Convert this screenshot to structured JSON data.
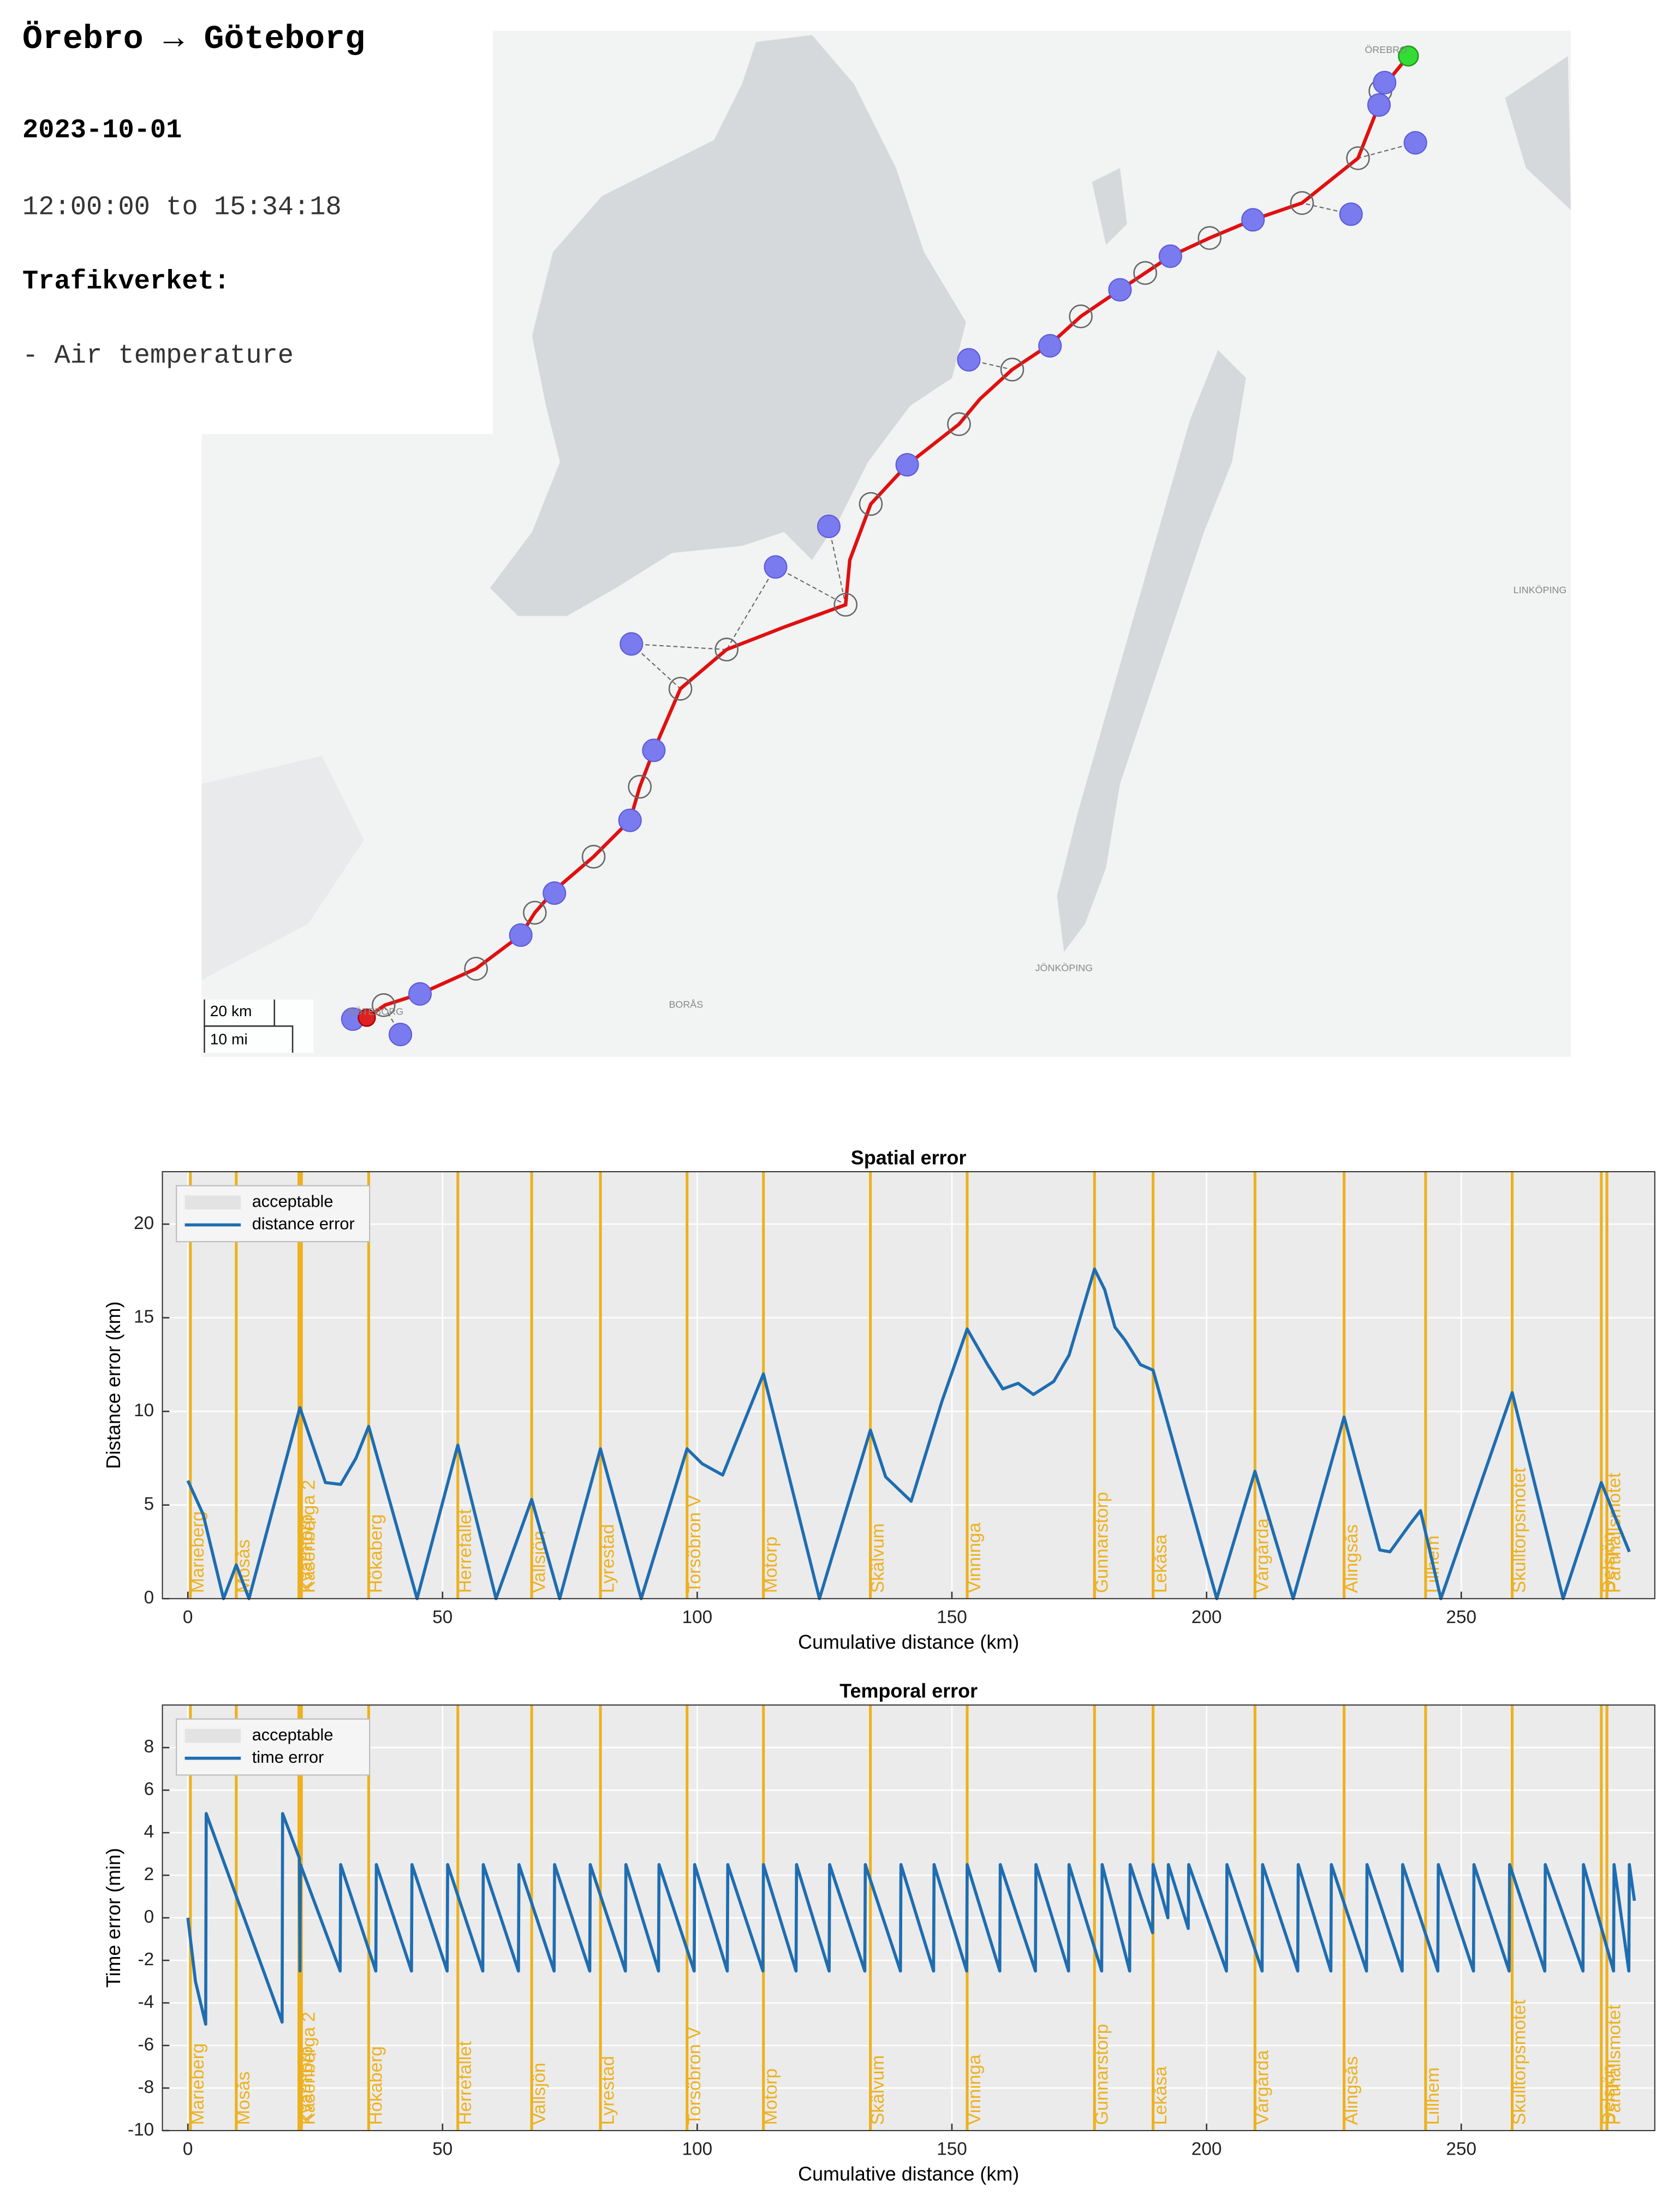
{
  "header": {
    "title": "Örebro → Göteborg",
    "date": "2023-10-01",
    "time_range": "12:00:00 to 15:34:18",
    "source": "Trafikverket:",
    "measurement": "- Air temperature"
  },
  "map": {
    "places": [
      "ÖREBRO",
      "BORÅS",
      "JÖNKÖPING",
      "LINKÖPING",
      "GÖTEBORG"
    ],
    "scale": [
      "20 km",
      "10 mi"
    ]
  },
  "chart_data": [
    {
      "type": "line",
      "title": "Spatial error",
      "x_label": "Cumulative distance (km)",
      "y_label": "Distance error (km)",
      "xlim": [
        -5,
        288
      ],
      "xticks": [
        0,
        50,
        100,
        150,
        200,
        250
      ],
      "ylim": [
        0,
        22.8
      ],
      "yticks": [
        0,
        5,
        10,
        15,
        20
      ],
      "grid": true,
      "bands": [
        {
          "name": "acceptable",
          "color": "#e3e3e3"
        }
      ],
      "markers": {
        "color": "#edb120",
        "names": [
          "Marieberg",
          "Mosås",
          "Kvarntorp",
          "Kåsenberga 2",
          "Hökaberg",
          "Herrefallet",
          "Vallsjön",
          "Lyrestad",
          "Torsöbron V",
          "Motorp",
          "Skälvum",
          "Vinninga",
          "Gunnarstorp",
          "Lekåsa",
          "Vårgårda",
          "Alingsås",
          "Lillhem",
          "Skulltorpsmotet",
          "Delsjön",
          "Partihallsmotet"
        ],
        "x": [
          0.5,
          9.5,
          21.8,
          22.3,
          35.5,
          53,
          67.5,
          81,
          98,
          113,
          134,
          153,
          178,
          189.5,
          209.5,
          227,
          243,
          260,
          277.5,
          278.6
        ]
      },
      "x": [
        0,
        3,
        7,
        9.5,
        12,
        22,
        27,
        30,
        33,
        35.5,
        45,
        53,
        60.5,
        67.5,
        73,
        81,
        89,
        98,
        101,
        105,
        113,
        124,
        134,
        137,
        142,
        148,
        153,
        157,
        160,
        163,
        166,
        170,
        173,
        178,
        180,
        182,
        184,
        187,
        189.5,
        202,
        209.5,
        217,
        227,
        234,
        236,
        240,
        242,
        246,
        260,
        270,
        277.5,
        280,
        283
      ],
      "series": [
        {
          "name": "distance error",
          "color": "#1f6db0",
          "values": [
            6.3,
            4.5,
            0,
            1.8,
            0,
            10.2,
            6.2,
            6.1,
            7.5,
            9.2,
            0,
            8.2,
            0,
            5.3,
            0,
            8,
            0,
            8,
            7.2,
            6.6,
            12,
            0,
            9,
            6.5,
            5.2,
            10.5,
            14.4,
            12.5,
            11.2,
            11.5,
            10.9,
            11.6,
            13,
            17.6,
            16.5,
            14.5,
            13.8,
            12.5,
            12.2,
            0,
            6.8,
            0,
            9.7,
            2.6,
            2.5,
            4,
            4.7,
            0,
            11,
            0,
            6.2,
            4.5,
            2.5
          ]
        }
      ]
    },
    {
      "type": "line",
      "title": "Temporal error",
      "x_label": "Cumulative distance (km)",
      "y_label": "Time error (min)",
      "xlim": [
        -5,
        288
      ],
      "xticks": [
        0,
        50,
        100,
        150,
        200,
        250
      ],
      "ylim": [
        -10,
        10
      ],
      "yticks": [
        -10,
        -8,
        -6,
        -4,
        -2,
        0,
        2,
        4,
        6,
        8
      ],
      "grid": true,
      "bands": [
        {
          "name": "acceptable",
          "color": "#e3e3e3"
        }
      ],
      "markers": {
        "color": "#edb120",
        "names": [
          "Marieberg",
          "Mosås",
          "Kvarntorp",
          "Kåsenberga 2",
          "Hökaberg",
          "Herrefallet",
          "Vallsjön",
          "Lyrestad",
          "Torsöbron V",
          "Motorp",
          "Skälvum",
          "Vinninga",
          "Gunnarstorp",
          "Lekåsa",
          "Vårgårda",
          "Alingsås",
          "Lillhem",
          "Skulltorpsmotet",
          "Delsjön",
          "Partihallsmotet"
        ],
        "x": [
          0.5,
          9.5,
          21.8,
          22.3,
          35.5,
          53,
          67.5,
          81,
          98,
          113,
          134,
          153,
          178,
          189.5,
          209.5,
          227,
          243,
          260,
          277.5,
          278.6
        ]
      },
      "x": [
        0,
        1.5,
        3.5,
        3.6,
        18.5,
        18.6,
        21.9,
        22,
        22.1,
        29.9,
        30,
        36.9,
        37,
        43.9,
        44,
        50.9,
        51,
        57.9,
        58,
        64.9,
        65,
        71.9,
        72,
        78.9,
        79,
        85.9,
        86,
        92.4,
        92.5,
        99.4,
        99.5,
        105.9,
        106,
        112.9,
        113,
        119.4,
        119.5,
        125.9,
        126,
        132.9,
        133,
        139.9,
        140,
        146.4,
        146.5,
        152.9,
        153,
        159.4,
        159.5,
        166.4,
        166.5,
        172.9,
        173,
        179.4,
        179.5,
        184.9,
        185,
        189.4,
        189.5,
        192.4,
        192.5,
        196.4,
        196.5,
        203.9,
        204,
        210.9,
        211,
        217.9,
        218,
        224.4,
        224.5,
        231.4,
        231.5,
        238.4,
        238.5,
        245.4,
        245.5,
        252.4,
        252.5,
        259.4,
        259.5,
        266.4,
        266.5,
        273.9,
        274,
        279.9,
        280,
        282.9,
        283,
        284
      ],
      "series": [
        {
          "name": "time error",
          "color": "#1f6db0",
          "values": [
            0,
            -3,
            -5,
            4.9,
            -4.9,
            4.9,
            2.8,
            -2.5,
            2.5,
            -2.5,
            2.5,
            -2.5,
            2.5,
            -2.5,
            2.5,
            -2.5,
            2.5,
            -2.5,
            2.5,
            -2.5,
            2.5,
            -2.5,
            2.5,
            -2.5,
            2.5,
            -2.5,
            2.5,
            -2.5,
            2.5,
            -2.5,
            2.5,
            -2.5,
            2.5,
            -2.5,
            2.5,
            -2.5,
            2.5,
            -2.5,
            2.5,
            -2.5,
            2.5,
            -2.5,
            2.5,
            -2.5,
            2.5,
            -2.5,
            2.5,
            -2.5,
            2.5,
            -2.5,
            2.5,
            -2.5,
            2.5,
            -2.5,
            2.5,
            -2.5,
            2.5,
            -0.7,
            2.5,
            0,
            2.5,
            -0.5,
            2.5,
            -2.5,
            2.5,
            -2.5,
            2.5,
            -2.5,
            2.5,
            -2.5,
            2.5,
            -2.5,
            2.5,
            -2.5,
            2.5,
            -2.5,
            2.5,
            -2.5,
            2.5,
            -2.5,
            2.5,
            -2.5,
            2.5,
            -2.5,
            2.5,
            -2.5,
            2.5,
            -2.5,
            2.5,
            0.8
          ]
        }
      ]
    }
  ]
}
